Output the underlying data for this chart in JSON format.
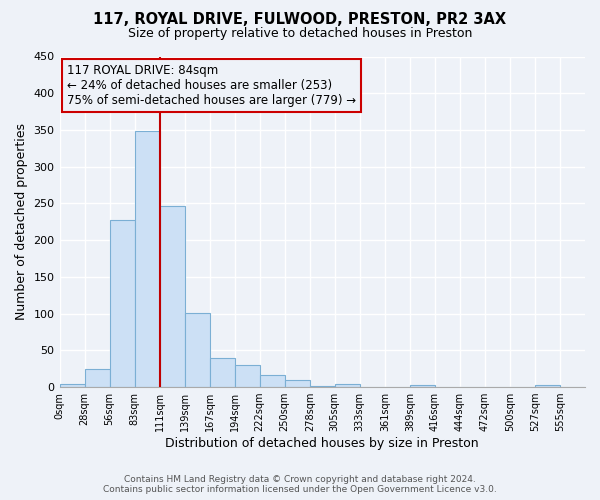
{
  "title": "117, ROYAL DRIVE, FULWOOD, PRESTON, PR2 3AX",
  "subtitle": "Size of property relative to detached houses in Preston",
  "xlabel": "Distribution of detached houses by size in Preston",
  "ylabel": "Number of detached properties",
  "footer_lines": [
    "Contains HM Land Registry data © Crown copyright and database right 2024.",
    "Contains public sector information licensed under the Open Government Licence v3.0."
  ],
  "bin_labels": [
    "0sqm",
    "28sqm",
    "56sqm",
    "83sqm",
    "111sqm",
    "139sqm",
    "167sqm",
    "194sqm",
    "222sqm",
    "250sqm",
    "278sqm",
    "305sqm",
    "333sqm",
    "361sqm",
    "389sqm",
    "416sqm",
    "444sqm",
    "472sqm",
    "500sqm",
    "527sqm",
    "555sqm"
  ],
  "bar_heights": [
    4,
    25,
    228,
    348,
    246,
    101,
    40,
    30,
    17,
    10,
    1,
    4,
    0,
    0,
    3,
    0,
    0,
    0,
    0,
    3,
    0
  ],
  "bar_color": "#cce0f5",
  "bar_edge_color": "#7bafd4",
  "vline_x_index": 3,
  "vline_color": "#c00000",
  "ylim": [
    0,
    450
  ],
  "yticks": [
    0,
    50,
    100,
    150,
    200,
    250,
    300,
    350,
    400,
    450
  ],
  "annotation_box_text": "117 ROYAL DRIVE: 84sqm\n← 24% of detached houses are smaller (253)\n75% of semi-detached houses are larger (779) →",
  "annotation_box_color": "#cc0000",
  "background_color": "#eef2f8"
}
